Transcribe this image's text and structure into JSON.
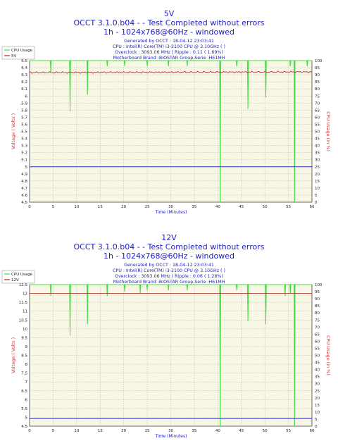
{
  "colors": {
    "title": "#2020c8",
    "plot_bg": "#f8f6e4",
    "grid": "#b0b0b0",
    "cpu_line": "#44dd44",
    "voltage_line": "#aa2222",
    "limit_line": "#3030c0",
    "ylabel_left": "#c83232",
    "ylabel_right": "#c83232"
  },
  "chart_data": [
    {
      "type": "line",
      "title": "5V",
      "subtitle_line1": "OCCT 3.1.0.b04 -  - Test Completed without errors",
      "subtitle_line2": "1h - 1024x768@60Hz - windowed",
      "info": [
        "Generated by OCCT : 18-04-12 23:03:41",
        "CPU : Intel(R) Core(TM) i3-2100 CPU @ 3.10GHz (  )",
        "Overclock : 3093.06 MHz | Ripple : 0.11 ( 1.69%)",
        "Motherboard Brand :BIOSTAR Group,Serie :H61MH"
      ],
      "legend": [
        "CPU Usage",
        "5V"
      ],
      "xlabel": "Time (Minutes)",
      "ylabel": "Voltage ( Volts )",
      "ylabel_right": "CPU Usage (in %)",
      "xlim": [
        0,
        60
      ],
      "ylim": [
        4.5,
        6.5
      ],
      "ylim_right": [
        0,
        100
      ],
      "x_ticks": [
        0,
        5,
        10,
        15,
        20,
        25,
        30,
        35,
        40,
        45,
        50,
        55,
        60
      ],
      "y_ticks": [
        "4.5",
        "4.6",
        "4.7",
        "4.8",
        "4.9",
        "5",
        "5.1",
        "5.2",
        "5.3",
        "5.4",
        "5.5",
        "5.6",
        "5.7",
        "5.8",
        "5.9",
        "6",
        "6.1",
        "6.2",
        "6.3",
        "6.4",
        "6.5"
      ],
      "y_ticks_right": [
        0,
        5,
        10,
        15,
        20,
        25,
        30,
        35,
        40,
        45,
        50,
        55,
        60,
        65,
        70,
        75,
        80,
        85,
        90,
        95,
        100
      ],
      "series": [
        {
          "name": "5V",
          "axis": "left",
          "values": [
            6.33,
            6.34
          ],
          "x": [
            0,
            60
          ]
        },
        {
          "name": "CPU Usage",
          "axis": "right",
          "baseline": 100,
          "dips": [
            [
              4.5,
              92
            ],
            [
              8.6,
              64
            ],
            [
              12.3,
              76
            ],
            [
              16.5,
              96
            ],
            [
              20.2,
              96
            ],
            [
              25.0,
              96
            ],
            [
              29.5,
              96
            ],
            [
              33.5,
              96
            ],
            [
              40.5,
              0
            ],
            [
              44.0,
              96
            ],
            [
              46.4,
              66
            ],
            [
              50.2,
              74
            ],
            [
              55.4,
              96
            ],
            [
              56.3,
              0
            ],
            [
              59.0,
              96
            ]
          ]
        }
      ],
      "hline": 5.0
    },
    {
      "type": "line",
      "title": "12V",
      "subtitle_line1": "OCCT 3.1.0.b04 -  - Test Completed without errors",
      "subtitle_line2": "1h - 1024x768@60Hz - windowed",
      "info": [
        "Generated by OCCT : 18-04-12 23:03:41",
        "CPU : Intel(R) Core(TM) i3-2100 CPU @ 3.10GHz (  )",
        "Overclock : 3093.06 MHz | Ripple : 0.06 ( 1.28%)",
        "Motherboard Brand :BIOSTAR Group,Serie :H61MH"
      ],
      "legend": [
        "CPU Usage",
        "12V"
      ],
      "xlabel": "Time (Minutes)",
      "ylabel": "Voltage ( Volts )",
      "ylabel_right": "CPU Usage (in %)",
      "xlim": [
        0,
        60
      ],
      "ylim": [
        4.5,
        12.5
      ],
      "ylim_right": [
        0,
        100
      ],
      "x_ticks": [
        0,
        5,
        10,
        15,
        20,
        25,
        30,
        35,
        40,
        45,
        50,
        55,
        60
      ],
      "y_ticks": [
        "4.5",
        "5",
        "5.5",
        "6",
        "6.5",
        "7",
        "7.5",
        "8",
        "8.5",
        "9",
        "9.5",
        "10",
        "10.5",
        "11",
        "11.5",
        "12",
        "12.5"
      ],
      "y_ticks_right": [
        0,
        5,
        10,
        15,
        20,
        25,
        30,
        35,
        40,
        45,
        50,
        55,
        60,
        65,
        70,
        75,
        80,
        85,
        90,
        95,
        100
      ],
      "series": [
        {
          "name": "12V",
          "axis": "left",
          "values": [
            12.0,
            12.0
          ],
          "x": [
            0,
            60
          ]
        },
        {
          "name": "CPU Usage",
          "axis": "right",
          "baseline": 100,
          "dips": [
            [
              4.5,
              92
            ],
            [
              8.6,
              64
            ],
            [
              12.3,
              72
            ],
            [
              16.5,
              92
            ],
            [
              20.2,
              95
            ],
            [
              23.5,
              94
            ],
            [
              25.0,
              96
            ],
            [
              29.5,
              96
            ],
            [
              33.5,
              96
            ],
            [
              40.5,
              0
            ],
            [
              44.0,
              96
            ],
            [
              46.4,
              74
            ],
            [
              50.2,
              72
            ],
            [
              54.3,
              92
            ],
            [
              55.4,
              94
            ],
            [
              56.3,
              0
            ]
          ]
        }
      ],
      "hline": 4.92
    }
  ]
}
